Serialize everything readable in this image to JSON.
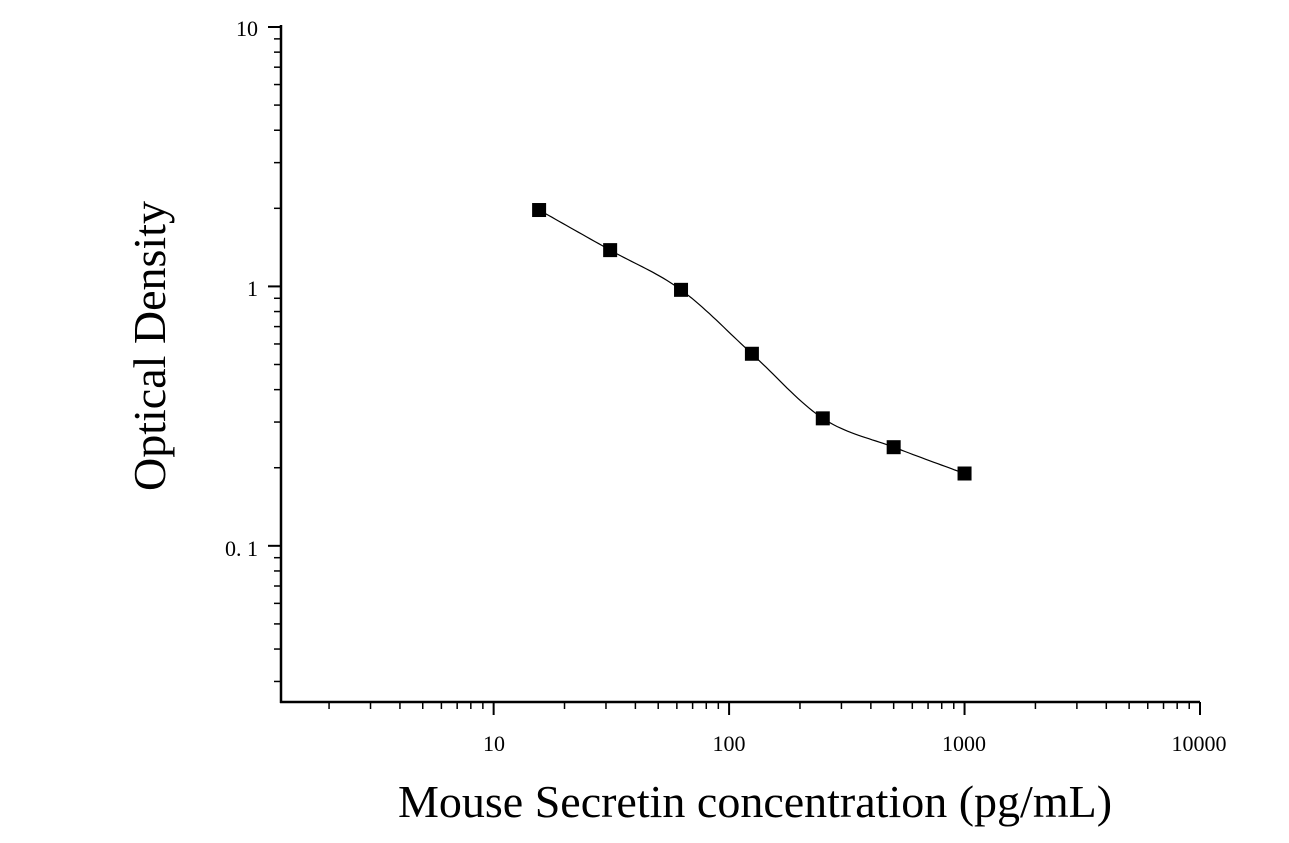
{
  "chart_data": {
    "type": "scatter",
    "title": "",
    "xlabel": "Mouse Secretin concentration (pg/mL)",
    "ylabel": "Optical Density",
    "x_scale": "log",
    "y_scale": "log",
    "xlim": [
      1.25,
      10000
    ],
    "ylim": [
      0.025,
      10
    ],
    "x_ticks": [
      {
        "value": 10,
        "label": "10"
      },
      {
        "value": 100,
        "label": "100"
      },
      {
        "value": 1000,
        "label": "1000"
      },
      {
        "value": 10000,
        "label": "10000"
      }
    ],
    "y_ticks": [
      {
        "value": 0.1,
        "label": "0. 1"
      },
      {
        "value": 1,
        "label": "1"
      },
      {
        "value": 10,
        "label": "10"
      }
    ],
    "grid": false,
    "legend": "none",
    "marker_color": "#000000",
    "series": [
      {
        "marker": "square",
        "x": [
          15.6,
          31.25,
          62.5,
          125,
          250,
          500,
          1000
        ],
        "y": [
          1.97,
          1.38,
          0.97,
          0.55,
          0.31,
          0.24,
          0.19
        ]
      }
    ],
    "fit_curve": {
      "type": "4PL",
      "x_range": [
        15.6,
        1000
      ],
      "color": "#000000"
    }
  }
}
